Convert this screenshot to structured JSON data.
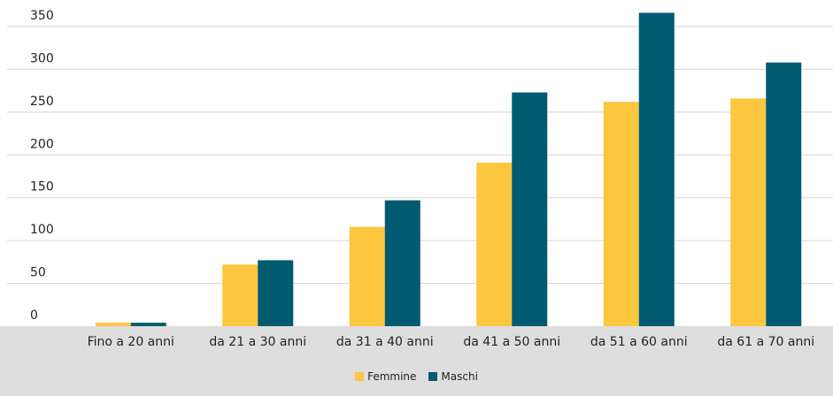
{
  "chart_data": {
    "type": "bar",
    "title": "",
    "xlabel": "",
    "ylabel": "",
    "categories": [
      "Fino a 20 anni",
      "da 21 a 30 anni",
      "da 31 a 40 anni",
      "da 41 a 50 anni",
      "da 51 a 60 anni",
      "da 61 a 70 anni"
    ],
    "series": [
      {
        "name": "Femmine",
        "color": "#fcc63f",
        "values": [
          4,
          72,
          116,
          191,
          262,
          266
        ]
      },
      {
        "name": "Maschi",
        "color": "#005a70",
        "values": [
          4,
          77,
          147,
          273,
          366,
          308
        ]
      }
    ],
    "ylim": [
      0,
      350
    ],
    "yticks": [
      0,
      50,
      100,
      150,
      200,
      250,
      300,
      350
    ],
    "ytick_labels": [
      "0",
      "50",
      "100",
      "150",
      "200",
      "250",
      "300",
      "350"
    ],
    "grid": true,
    "legend": "bottom-center"
  }
}
